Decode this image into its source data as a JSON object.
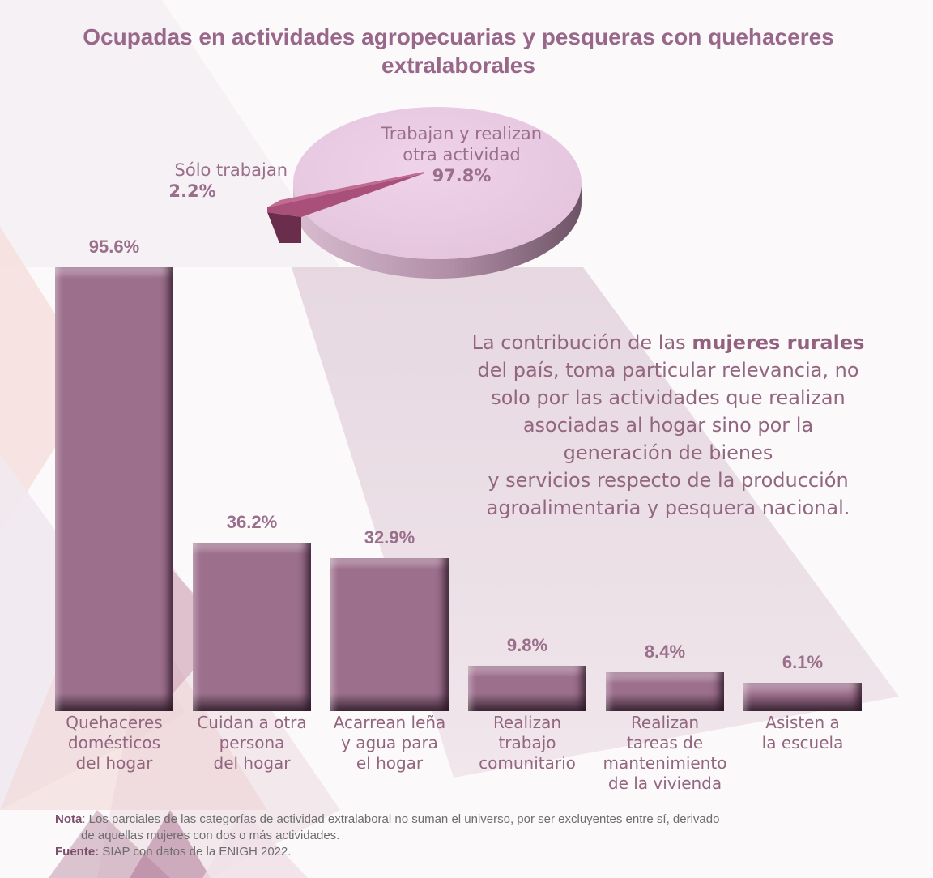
{
  "title": "Ocupadas en actividades agropecuarias y pesqueras con quehaceres extralaborales",
  "colors": {
    "title": "#98678a",
    "bar": "#9c6f8c",
    "pie_large": "#ebcfe6",
    "pie_small": "#a84f7a",
    "text": "#93667f"
  },
  "chart_data": [
    {
      "type": "pie",
      "title": "",
      "slices": [
        {
          "label": "Trabajan y realizan otra actividad",
          "value": 97.8,
          "display": "97.8%"
        },
        {
          "label": "Sólo trabajan",
          "value": 2.2,
          "display": "2.2%"
        }
      ]
    },
    {
      "type": "bar",
      "title": "",
      "xlabel": "",
      "ylabel": "",
      "ylim": [
        0,
        100
      ],
      "grid": false,
      "categories": [
        "Quehaceres domésticos del hogar",
        "Cuidan a otra persona del hogar",
        "Acarrean leña y agua para el hogar",
        "Realizan trabajo comunitario",
        "Realizan tareas de mantenimiento de la vivienda",
        "Asisten a la escuela"
      ],
      "category_lines": [
        [
          "Quehaceres",
          "domésticos",
          "del hogar"
        ],
        [
          "Cuidan a otra",
          "persona",
          "del hogar"
        ],
        [
          "Acarrean leña",
          "y agua para",
          "el hogar"
        ],
        [
          "Realizan",
          "trabajo",
          "comunitario"
        ],
        [
          "Realizan",
          "tareas de",
          "mantenimiento",
          "de la vivienda"
        ],
        [
          "Asisten a",
          "la escuela"
        ]
      ],
      "values": [
        95.6,
        36.2,
        32.9,
        9.8,
        8.4,
        6.1
      ],
      "value_labels": [
        "95.6%",
        "36.2%",
        "32.9%",
        "9.8%",
        "8.4%",
        "6.1%"
      ]
    }
  ],
  "pie_labels": {
    "big_line1": "Trabajan y realizan",
    "big_line2": "otra actividad",
    "big_pct": "97.8%",
    "small_name": "Sólo trabajan",
    "small_pct": "2.2%"
  },
  "paragraph": {
    "pre": "La contribución de las ",
    "bold": "mujeres rurales",
    "lines": [
      "del país, toma particular relevancia, no",
      "solo por las actividades que realizan",
      "asociadas al hogar sino por la",
      "generación de bienes",
      "y servicios respecto de la producción",
      "agroalimentaria y pesquera nacional."
    ]
  },
  "footer": {
    "nota_key": "Nota",
    "nota_text_1": ": Los parciales de las categorías de actividad extralaboral no suman el universo, por ser excluyentes entre sí, derivado",
    "nota_text_2": "de aquellas mujeres con dos o más actividades.",
    "fuente_key": "Fuente:",
    "fuente_text": " SIAP con datos de la ENIGH 2022."
  }
}
